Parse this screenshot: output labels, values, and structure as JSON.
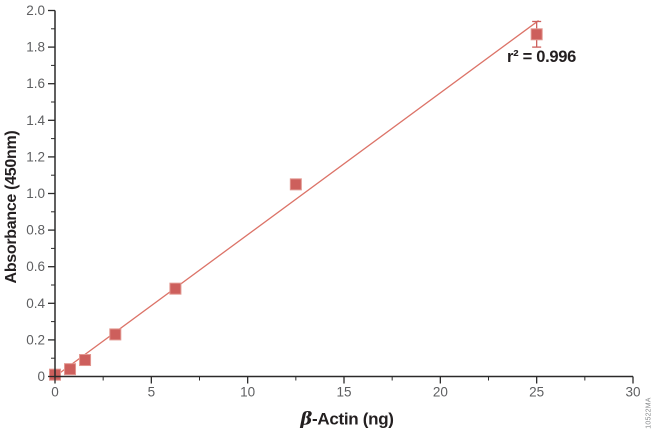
{
  "figure": {
    "watermark": "10522MA"
  },
  "chart_data": {
    "type": "scatter",
    "title": "",
    "xlabel": "β-Actin (ng)",
    "xlabel_beta": "β",
    "xlabel_rest": "-Actin (ng)",
    "ylabel": "Absorbance (450nm)",
    "xlim": [
      0,
      30
    ],
    "ylim": [
      0,
      2.0
    ],
    "grid": false,
    "legend": null,
    "x_major_ticks": [
      0,
      5,
      10,
      15,
      20,
      25,
      30
    ],
    "x_tick_labels": [
      "0",
      "5",
      "10",
      "15",
      "20",
      "25",
      "30"
    ],
    "x_minor_ticks": [
      2.5,
      7.5,
      12.5,
      17.5,
      22.5,
      27.5
    ],
    "y_major_ticks": [
      0,
      0.2,
      0.4,
      0.6,
      0.8,
      1.0,
      1.2,
      1.4,
      1.6,
      1.8,
      2.0
    ],
    "y_tick_labels": [
      "0",
      "0.2",
      "0.4",
      "0.6",
      "0.8",
      "1.0",
      "1.2",
      "1.4",
      "1.6",
      "1.8",
      "2.0"
    ],
    "y_minor_ticks": [
      0.1,
      0.3,
      0.5,
      0.7,
      0.9,
      1.1,
      1.3,
      1.5,
      1.7,
      1.9
    ],
    "points": [
      {
        "x": 0,
        "y": 0.01
      },
      {
        "x": 0.78,
        "y": 0.04
      },
      {
        "x": 1.56,
        "y": 0.09
      },
      {
        "x": 3.13,
        "y": 0.23
      },
      {
        "x": 6.25,
        "y": 0.48
      },
      {
        "x": 12.5,
        "y": 1.05
      },
      {
        "x": 25,
        "y": 1.87,
        "yerr": 0.07
      }
    ],
    "fit_line": {
      "x1": 0,
      "y1": 0.0,
      "x2": 25.1,
      "y2": 1.945
    },
    "r_squared": 0.996,
    "annotation": {
      "text": "r² = 0.996"
    },
    "colors": {
      "marker": "#cd5f5c",
      "marker_edge": "#e2968f",
      "line": "#dc7368",
      "axis": "#2b2a2a",
      "tick_label": "#5e5f61",
      "watermark": "#8a8c8e"
    }
  }
}
